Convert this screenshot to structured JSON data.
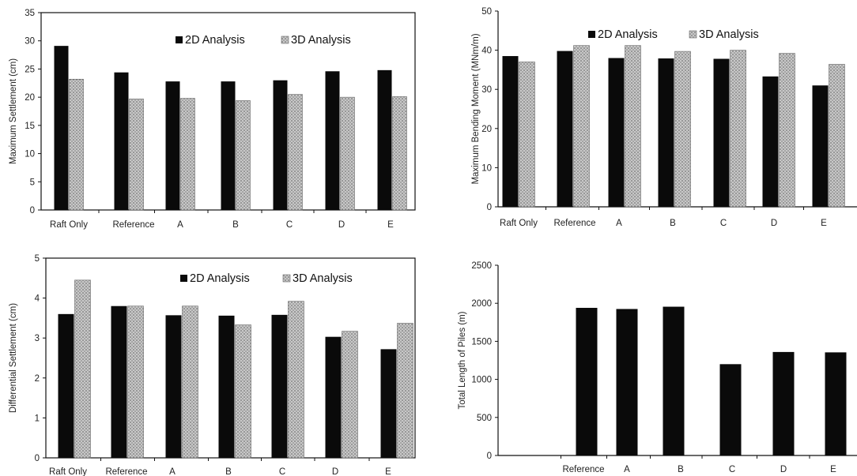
{
  "colors": {
    "series_2d": "#0a0a0a",
    "series_3d": "#c8c8c8",
    "axis": "#111111"
  },
  "chart_data": [
    {
      "id": "settlement",
      "type": "bar",
      "ylabel": "Maximum Settlement (cm)",
      "ylim": [
        0,
        35
      ],
      "yticks": [
        0,
        5,
        10,
        15,
        20,
        25,
        30,
        35
      ],
      "categories": [
        "Raft Only",
        "Reference",
        "A",
        "B",
        "C",
        "D",
        "E"
      ],
      "legend_placement": "top",
      "series": [
        {
          "name": "2D Analysis",
          "values": [
            29.1,
            24.4,
            22.8,
            22.8,
            23.0,
            24.6,
            24.8
          ]
        },
        {
          "name": "3D Analysis",
          "values": [
            23.2,
            19.7,
            19.8,
            19.4,
            20.5,
            20.0,
            20.1
          ]
        }
      ]
    },
    {
      "id": "bending",
      "type": "bar",
      "ylabel": "Maximum Bending Moment (MNm/m)",
      "ylim": [
        0,
        50
      ],
      "yticks": [
        0,
        10,
        20,
        30,
        40,
        50
      ],
      "categories": [
        "Raft Only",
        "Reference",
        "A",
        "B",
        "C",
        "D",
        "E"
      ],
      "legend_placement": "top",
      "series": [
        {
          "name": "2D Analysis",
          "values": [
            38.5,
            39.8,
            38.0,
            37.9,
            37.8,
            33.3,
            31.0
          ]
        },
        {
          "name": "3D Analysis",
          "values": [
            37.0,
            41.2,
            41.2,
            39.7,
            40.0,
            39.2,
            36.4
          ]
        }
      ]
    },
    {
      "id": "differential",
      "type": "bar",
      "ylabel": "Differential Settlement (cm)",
      "ylim": [
        0,
        5
      ],
      "yticks": [
        0,
        1,
        2,
        3,
        4,
        5
      ],
      "categories": [
        "Raft Only",
        "Reference",
        "A",
        "B",
        "C",
        "D",
        "E"
      ],
      "legend_placement": "top",
      "series": [
        {
          "name": "2D Analysis",
          "values": [
            3.6,
            3.8,
            3.57,
            3.56,
            3.58,
            3.03,
            2.72
          ]
        },
        {
          "name": "3D Analysis",
          "values": [
            4.45,
            3.8,
            3.8,
            3.33,
            3.92,
            3.17,
            3.37
          ]
        }
      ]
    },
    {
      "id": "pile_length",
      "type": "bar",
      "ylabel": "Total Length of Piles (m)",
      "ylim": [
        0,
        2500
      ],
      "yticks": [
        0,
        500,
        1000,
        1500,
        2000,
        2500
      ],
      "categories": [
        "",
        "Reference",
        "A",
        "B",
        "C",
        "D",
        "E"
      ],
      "series": [
        {
          "values": [
            null,
            1940,
            1925,
            1955,
            1200,
            1360,
            1355
          ]
        }
      ]
    }
  ]
}
